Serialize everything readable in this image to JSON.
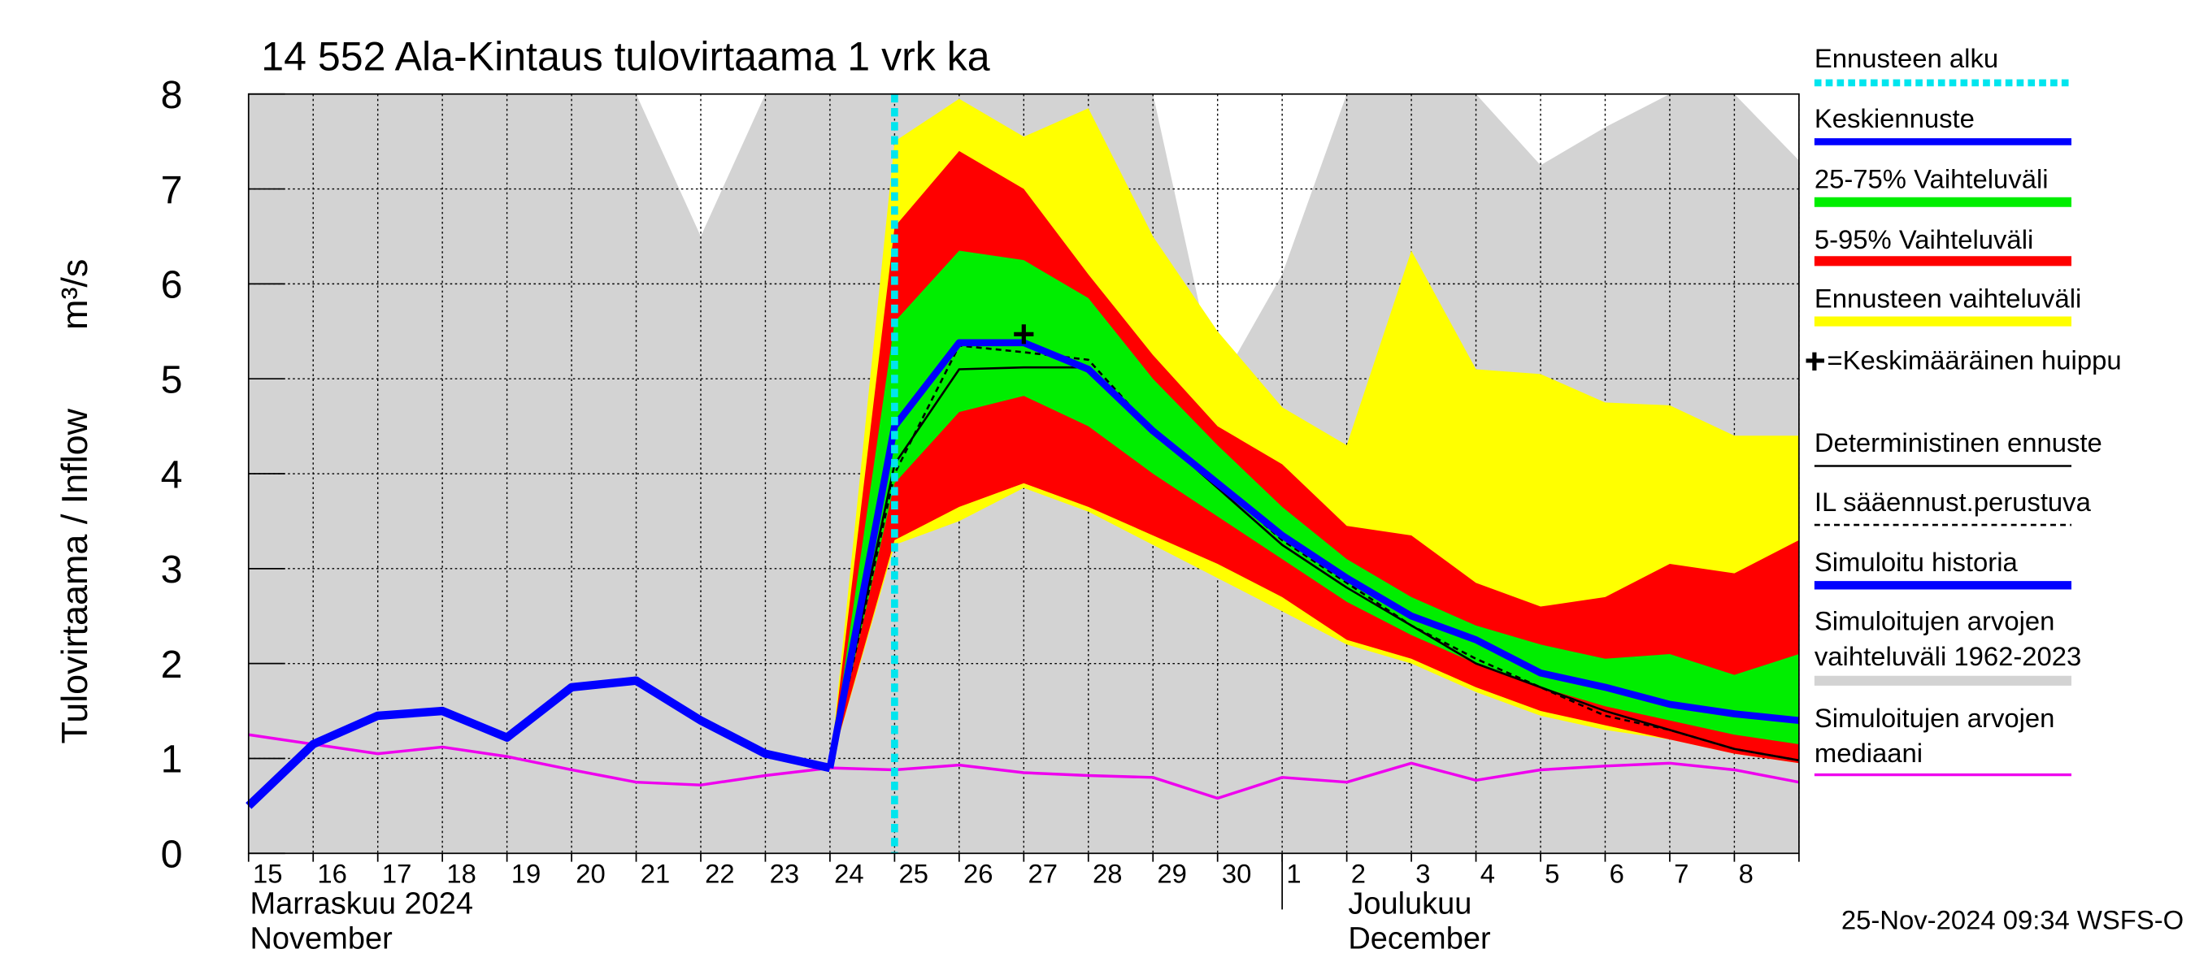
{
  "chart_data": {
    "type": "line",
    "title": "14 552 Ala-Kintaus tulovirtaama 1 vrk ka",
    "y_label": "Tulovirtaama / Inflow",
    "y_unit": "m³/s",
    "categories": [
      "15",
      "16",
      "17",
      "18",
      "19",
      "20",
      "21",
      "22",
      "23",
      "24",
      "25",
      "26",
      "27",
      "28",
      "29",
      "30",
      "1",
      "2",
      "3",
      "4",
      "5",
      "6",
      "7",
      "8",
      null
    ],
    "month_labels": [
      {
        "index": 0,
        "lines": [
          "Marraskuu 2024",
          "November"
        ]
      },
      {
        "index": 17,
        "lines": [
          "Joulukuu",
          "December"
        ]
      }
    ],
    "month_separator": 16,
    "ylim": [
      0,
      8
    ],
    "yticks": [
      0,
      1,
      2,
      3,
      4,
      5,
      6,
      7,
      8
    ],
    "grid": true,
    "forecast_start": {
      "label": "Ennusteen alku",
      "index": 10,
      "color": "#00e5ee"
    },
    "bands": [
      {
        "name": "Simuloitujen arvojen vaihteluväli 1962-2023",
        "color": "#d3d3d3",
        "low": [
          0,
          0,
          0,
          0,
          0,
          0,
          0,
          0,
          0,
          0,
          0,
          0,
          0,
          0,
          0,
          0,
          0,
          0,
          0,
          0,
          0,
          0,
          0,
          0,
          0
        ],
        "high": [
          8,
          8,
          8,
          8,
          8,
          8,
          8,
          6.5,
          8,
          8,
          8,
          8,
          8,
          8,
          8,
          4.9,
          6.1,
          8,
          8,
          8,
          7.25,
          7.65,
          8,
          8,
          7.3
        ]
      },
      {
        "name": "Ennusteen vaihteluväli",
        "color": "#ffff00",
        "low": [
          null,
          null,
          null,
          null,
          null,
          null,
          null,
          null,
          null,
          0.9,
          3.25,
          3.5,
          3.85,
          3.6,
          3.25,
          2.9,
          2.55,
          2.2,
          2.0,
          1.7,
          1.45,
          1.3,
          1.2,
          1.05,
          0.95
        ],
        "high": [
          null,
          null,
          null,
          null,
          null,
          null,
          null,
          null,
          null,
          0.9,
          7.5,
          7.95,
          7.55,
          7.85,
          6.5,
          5.5,
          4.7,
          4.3,
          6.35,
          5.1,
          5.05,
          4.75,
          4.72,
          4.4,
          4.4
        ]
      },
      {
        "name": "5-95% Vaihteluväli",
        "color": "#ff0000",
        "low": [
          null,
          null,
          null,
          null,
          null,
          null,
          null,
          null,
          null,
          0.9,
          3.3,
          3.65,
          3.9,
          3.65,
          3.35,
          3.05,
          2.7,
          2.25,
          2.05,
          1.75,
          1.5,
          1.35,
          1.2,
          1.05,
          0.95
        ],
        "high": [
          null,
          null,
          null,
          null,
          null,
          null,
          null,
          null,
          null,
          0.9,
          6.6,
          7.4,
          7.0,
          6.1,
          5.25,
          4.5,
          4.1,
          3.45,
          3.35,
          2.85,
          2.6,
          2.7,
          3.05,
          2.95,
          3.3
        ]
      },
      {
        "name": "25-75% Vaihteluväli",
        "color": "#00ee00",
        "low": [
          null,
          null,
          null,
          null,
          null,
          null,
          null,
          null,
          null,
          0.9,
          3.9,
          4.65,
          4.82,
          4.5,
          4.0,
          3.55,
          3.1,
          2.65,
          2.3,
          2.0,
          1.75,
          1.55,
          1.4,
          1.25,
          1.15
        ],
        "high": [
          null,
          null,
          null,
          null,
          null,
          null,
          null,
          null,
          null,
          0.9,
          5.6,
          6.35,
          6.25,
          5.85,
          5.0,
          4.3,
          3.65,
          3.1,
          2.7,
          2.4,
          2.2,
          2.05,
          2.1,
          1.88,
          2.1
        ]
      }
    ],
    "series": [
      {
        "name": "Keskiennuste",
        "color": "#0000ff",
        "width": 5,
        "values": [
          null,
          null,
          null,
          null,
          null,
          null,
          null,
          null,
          null,
          0.9,
          4.5,
          5.38,
          5.38,
          5.1,
          4.45,
          3.9,
          3.35,
          2.9,
          2.5,
          2.25,
          1.9,
          1.75,
          1.57,
          1.47,
          1.4
        ]
      },
      {
        "name": "Simuloitu historia",
        "color": "#0000ff",
        "width": 6,
        "values": [
          0.5,
          1.15,
          1.45,
          1.5,
          1.22,
          1.75,
          1.82,
          1.4,
          1.05,
          0.9,
          null,
          null,
          null,
          null,
          null,
          null,
          null,
          null,
          null,
          null,
          null,
          null,
          null,
          null,
          null
        ]
      },
      {
        "name": "Deterministinen ennuste",
        "color": "#000000",
        "width": 1.5,
        "values": [
          null,
          null,
          null,
          null,
          null,
          null,
          null,
          null,
          null,
          0.9,
          4.1,
          5.1,
          5.12,
          5.12,
          4.45,
          3.85,
          3.25,
          2.8,
          2.4,
          2.0,
          1.75,
          1.5,
          1.3,
          1.1,
          0.98
        ]
      },
      {
        "name": "IL sääennust.perustuva",
        "color": "#000000",
        "width": 1.5,
        "dashed": true,
        "values": [
          null,
          null,
          null,
          null,
          null,
          null,
          null,
          null,
          null,
          0.9,
          4.0,
          5.35,
          5.28,
          5.2,
          4.45,
          3.9,
          3.3,
          2.85,
          2.4,
          2.05,
          1.75,
          1.45,
          1.3,
          1.1,
          0.98
        ]
      },
      {
        "name": "Simuloitujen arvojen mediaani",
        "color": "#ee00ee",
        "width": 2,
        "values": [
          1.25,
          1.15,
          1.05,
          1.12,
          1.02,
          0.88,
          0.75,
          0.72,
          0.82,
          0.9,
          0.88,
          0.93,
          0.85,
          0.82,
          0.8,
          0.58,
          0.8,
          0.75,
          0.95,
          0.77,
          0.88,
          0.92,
          0.95,
          0.88,
          0.75
        ]
      },
      {
        "name": "=Keskimääräinen huippu",
        "color": "#000000",
        "marker": "+",
        "values": [
          null,
          null,
          null,
          null,
          null,
          null,
          null,
          null,
          null,
          null,
          null,
          null,
          5.47,
          null,
          null,
          null,
          null,
          null,
          null,
          null,
          null,
          null,
          null,
          null,
          null
        ]
      }
    ],
    "footer": "25-Nov-2024 09:34 WSFS-O"
  }
}
